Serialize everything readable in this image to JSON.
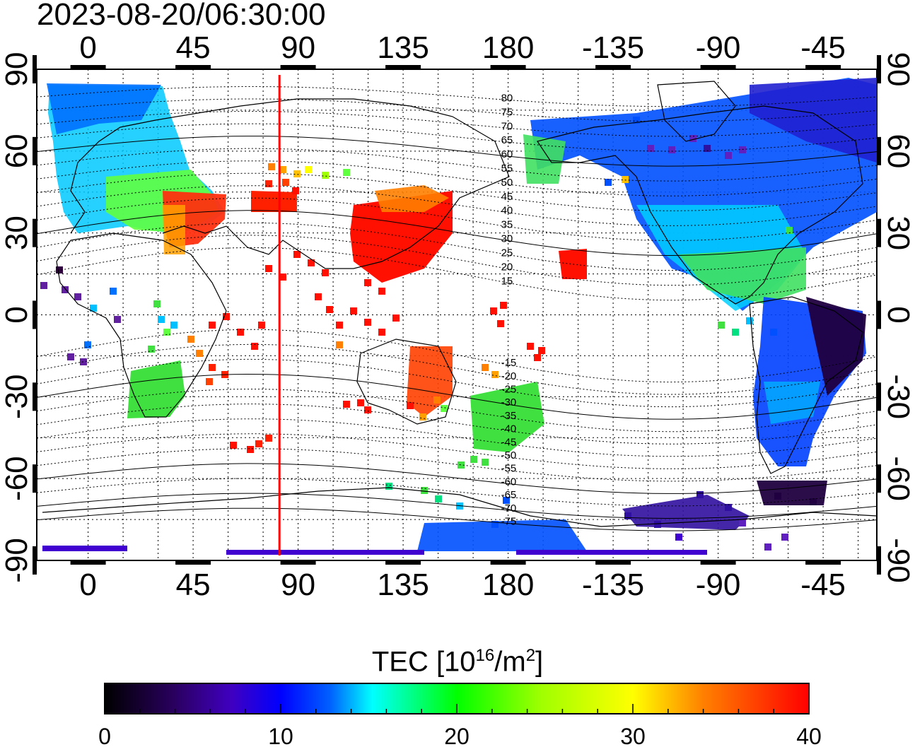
{
  "timestamp": "2023-08-20/06:30:00",
  "map": {
    "lon_ticks_top": [
      "0",
      "45",
      "90",
      "135",
      "180",
      "-135",
      "-90",
      "-45"
    ],
    "lon_ticks_bottom": [
      "0",
      "45",
      "90",
      "135",
      "180",
      "-135",
      "-90",
      "-45"
    ],
    "lat_ticks_left": [
      "90",
      "60",
      "30",
      "0",
      "-30",
      "-60",
      "-90"
    ],
    "lat_ticks_right": [
      "90",
      "60",
      "30",
      "0",
      "-30",
      "-60",
      "-90"
    ],
    "lon_range": [
      -22,
      338
    ],
    "lat_range": [
      -90,
      90
    ],
    "grid": "dotted",
    "subsolar_meridian_lon": 82,
    "marker_color": "#ff0000",
    "contour_labels": [
      "80",
      "75",
      "70",
      "65",
      "60",
      "55",
      "50",
      "45",
      "40",
      "35",
      "30",
      "25",
      "20",
      "15",
      "-15",
      "-20",
      "-25",
      "-30",
      "-35",
      "-40",
      "-45",
      "-50",
      "-55",
      "-60",
      "-65",
      "-70",
      "-75"
    ]
  },
  "colorbar": {
    "title_prefix": "TEC  [10",
    "title_exp1": "16",
    "title_mid": "/m",
    "title_exp2": "2",
    "title_suffix": "]",
    "range": [
      0,
      40
    ],
    "ticks": [
      "0",
      "10",
      "20",
      "30",
      "40"
    ],
    "colormap": [
      "#000000",
      "#3a0080",
      "#0000ff",
      "#00ffff",
      "#00ff00",
      "#ffff00",
      "#ff8000",
      "#ff0000"
    ]
  }
}
